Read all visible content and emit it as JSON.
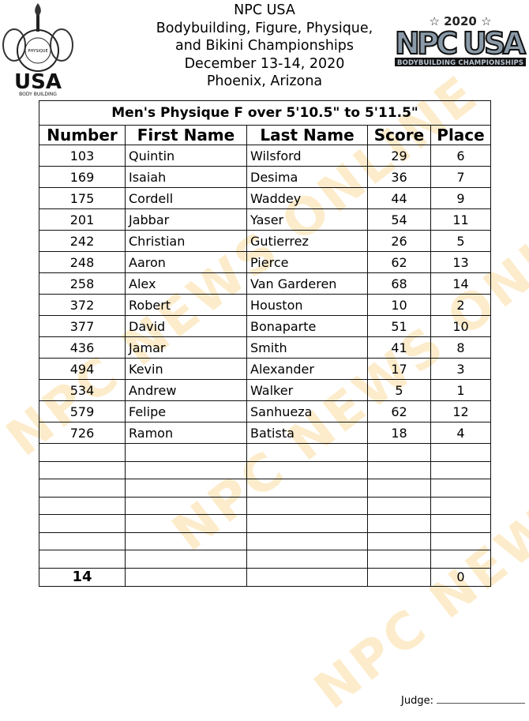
{
  "header": {
    "lines": [
      "NPC USA",
      "Bodybuilding, Figure, Physique,",
      "and Bikini Championships",
      "December 13-14, 2020",
      "Phoenix, Arizona"
    ]
  },
  "logos": {
    "left": {
      "text": "USA",
      "ring": "NATIONAL PHYSIQUE COMMITTEE",
      "sub": "BODY BUILDING"
    },
    "right": {
      "year": "2020",
      "name": "NPC USA",
      "sub": "BODYBUILDING CHAMPIONSHIPS"
    }
  },
  "watermark": "NPC NEWS ONLINE",
  "table": {
    "title": "Men's Physique F over 5'10.5\" to 5'11.5\"",
    "columns": [
      "Number",
      "First Name",
      "Last Name",
      "Score",
      "Place"
    ],
    "rows": [
      [
        "103",
        "Quintin",
        "Wilsford",
        "29",
        "6"
      ],
      [
        "169",
        "Isaiah",
        "Desima",
        "36",
        "7"
      ],
      [
        "175",
        "Cordell",
        "Waddey",
        "44",
        "9"
      ],
      [
        "201",
        "Jabbar",
        "Yaser",
        "54",
        "11"
      ],
      [
        "242",
        "Christian",
        "Gutierrez",
        "26",
        "5"
      ],
      [
        "248",
        "Aaron",
        "Pierce",
        "62",
        "13"
      ],
      [
        "258",
        "Alex",
        "Van Garderen",
        "68",
        "14"
      ],
      [
        "372",
        "Robert",
        "Houston",
        "10",
        "2"
      ],
      [
        "377",
        "David",
        "Bonaparte",
        "51",
        "10"
      ],
      [
        "436",
        "Jamar",
        "Smith",
        "41",
        "8"
      ],
      [
        "494",
        "Kevin",
        "Alexander",
        "17",
        "3"
      ],
      [
        "534",
        "Andrew",
        "Walker",
        "5",
        "1"
      ],
      [
        "579",
        "Felipe",
        "Sanhueza",
        "62",
        "12"
      ],
      [
        "726",
        "Ramon",
        "Batista",
        "18",
        "4"
      ]
    ],
    "blank_rows": 7,
    "total": {
      "count": "14",
      "place": "0"
    }
  },
  "footer": {
    "judge_label": "Judge:"
  }
}
